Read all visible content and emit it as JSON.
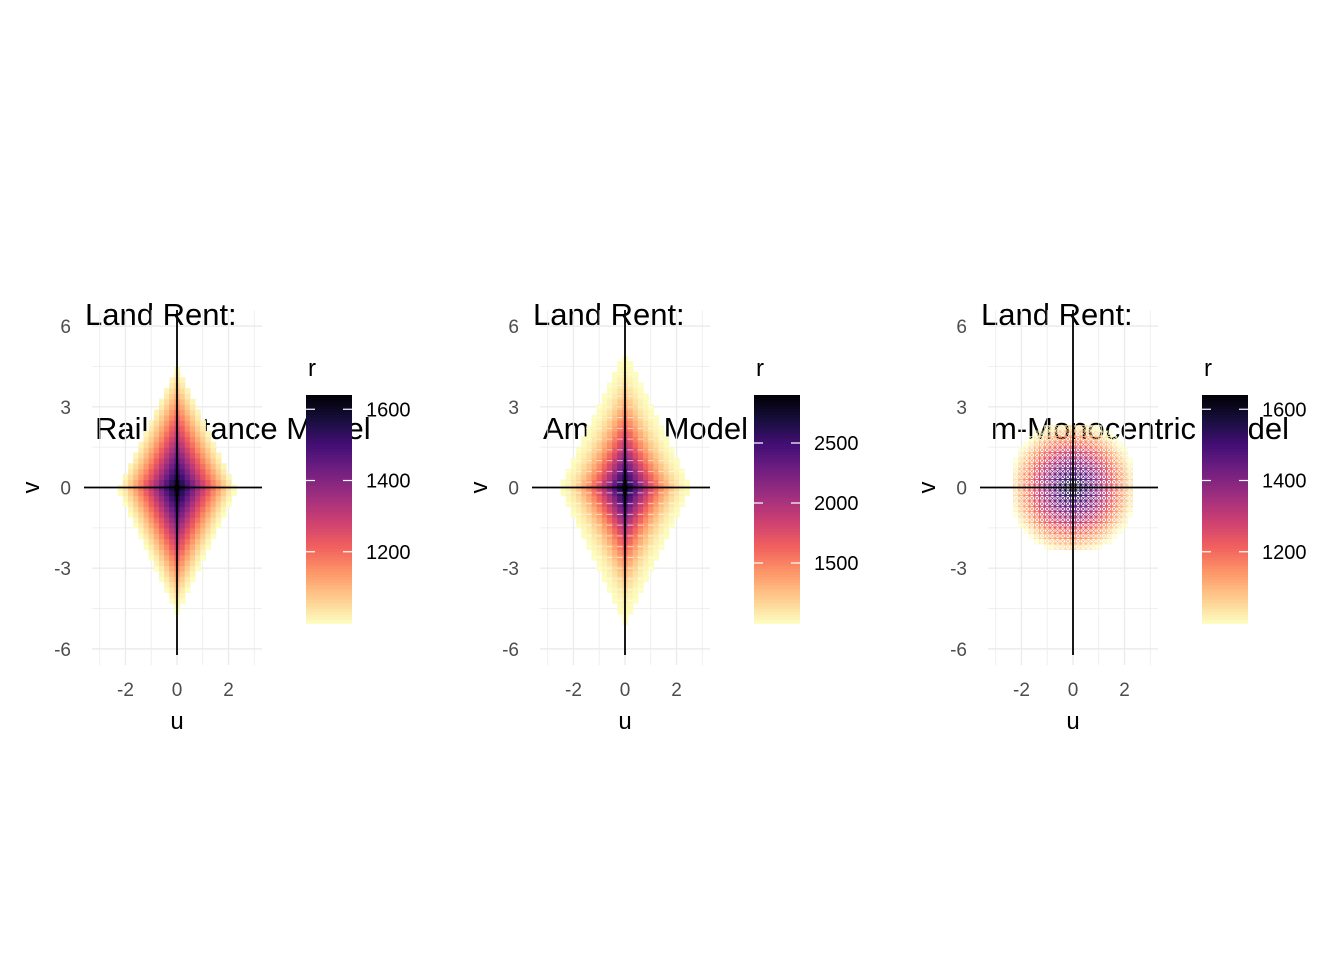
{
  "chart_data": [
    {
      "type": "heatmap",
      "model": "rail",
      "title_line1": "Land Rent:",
      "title_line2": "Rail Distance Model",
      "xlabel": "u",
      "ylabel": "v",
      "xlim": [
        -3.3,
        3.3
      ],
      "ylim": [
        -6.6,
        6.6
      ],
      "xticks": [
        "-2",
        "0",
        "2"
      ],
      "yticks": [
        "-6",
        "-3",
        "0",
        "3",
        "6"
      ],
      "legend_title": "r",
      "legend_range": [
        1000,
        1640
      ],
      "legend_ticks": [
        "1200",
        "1400",
        "1600"
      ]
    },
    {
      "type": "heatmap",
      "model": "amenity",
      "title_line1": "Land Rent:",
      "title_line2": "Amenity Model",
      "xlabel": "u",
      "ylabel": "v",
      "xlim": [
        -3.3,
        3.3
      ],
      "ylim": [
        -6.6,
        6.6
      ],
      "xticks": [
        "-2",
        "0",
        "2"
      ],
      "yticks": [
        "-6",
        "-3",
        "0",
        "3",
        "6"
      ],
      "legend_title": "r",
      "legend_range": [
        1000,
        2900
      ],
      "legend_ticks": [
        "1500",
        "2000",
        "2500"
      ]
    },
    {
      "type": "heatmap",
      "model": "mono",
      "title_line1": "Land Rent:",
      "title_line2": "m-Monocentric Model",
      "xlabel": "u",
      "ylabel": "v",
      "xlim": [
        -3.3,
        3.3
      ],
      "ylim": [
        -6.6,
        6.6
      ],
      "xticks": [
        "-2",
        "0",
        "2"
      ],
      "yticks": [
        "-6",
        "-3",
        "0",
        "3",
        "6"
      ],
      "legend_title": "r",
      "legend_range": [
        1000,
        1640
      ],
      "legend_ticks": [
        "1200",
        "1400",
        "1600"
      ]
    }
  ],
  "colors": {
    "magma": [
      "#fcfdbf",
      "#feca8d",
      "#fd9668",
      "#f1605d",
      "#cd4071",
      "#9e2f7f",
      "#721f81",
      "#440f76",
      "#180f3d",
      "#000004"
    ],
    "grid": "#ebebeb",
    "axis_line": "#000000"
  }
}
